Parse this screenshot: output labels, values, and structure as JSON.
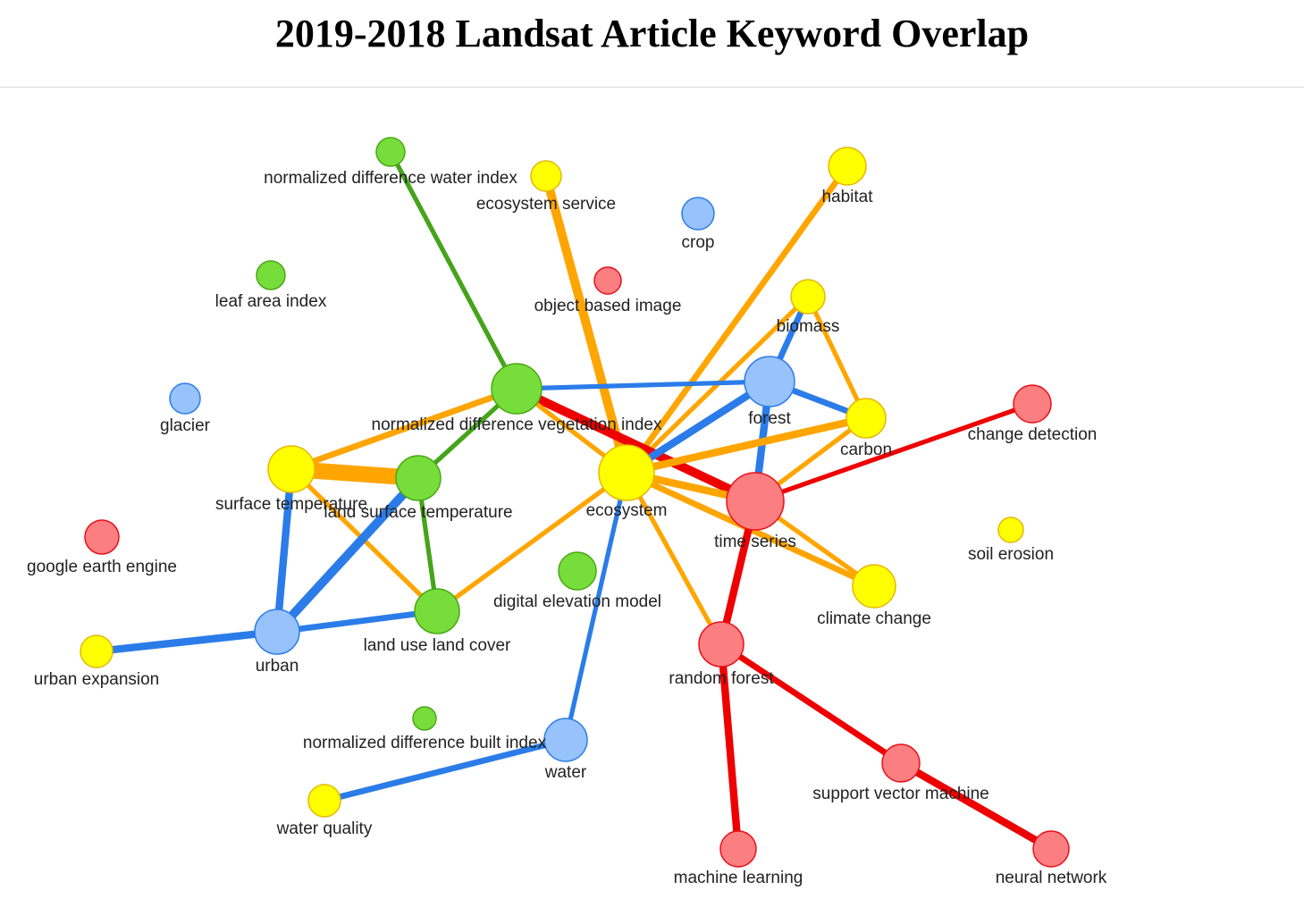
{
  "title": "2019-2018 Landsat Article Keyword Overlap",
  "colors": {
    "green": "#77dd3a",
    "green_stroke": "#4aa816",
    "yellow": "#ffff00",
    "yellow_stroke": "#e6b800",
    "blue": "#97c2fc",
    "blue_stroke": "#2b7ce9",
    "red": "#fb7e81",
    "red_stroke": "#e8101a",
    "edge_green": "#45a41b",
    "edge_yellow": "#ffa500",
    "edge_blue": "#2b7ce9",
    "edge_red": "#ee0000"
  },
  "nodes": [
    {
      "id": "ndwi",
      "label": "normalized difference water index",
      "group": "green"
    },
    {
      "id": "ecosvc",
      "label": "ecosystem service",
      "group": "yellow"
    },
    {
      "id": "crop",
      "label": "crop",
      "group": "blue"
    },
    {
      "id": "habitat",
      "label": "habitat",
      "group": "yellow"
    },
    {
      "id": "lai",
      "label": "leaf area index",
      "group": "green"
    },
    {
      "id": "obi",
      "label": "object based image",
      "group": "red"
    },
    {
      "id": "biomass",
      "label": "biomass",
      "group": "yellow"
    },
    {
      "id": "glacier",
      "label": "glacier",
      "group": "blue"
    },
    {
      "id": "ndvi",
      "label": "normalized difference vegetation index",
      "group": "green"
    },
    {
      "id": "forest",
      "label": "forest",
      "group": "blue"
    },
    {
      "id": "carbon",
      "label": "carbon",
      "group": "yellow"
    },
    {
      "id": "changedet",
      "label": "change detection",
      "group": "red"
    },
    {
      "id": "surftemp",
      "label": "surface temperature",
      "group": "yellow"
    },
    {
      "id": "lst",
      "label": "land surface temperature",
      "group": "green"
    },
    {
      "id": "ecosystem",
      "label": "ecosystem",
      "group": "yellow"
    },
    {
      "id": "timeseries",
      "label": "time series",
      "group": "red"
    },
    {
      "id": "soil",
      "label": "soil erosion",
      "group": "yellow"
    },
    {
      "id": "gee",
      "label": "google earth engine",
      "group": "red"
    },
    {
      "id": "dem",
      "label": "digital elevation model",
      "group": "green"
    },
    {
      "id": "climate",
      "label": "climate change",
      "group": "yellow"
    },
    {
      "id": "lulc",
      "label": "land use land cover",
      "group": "green"
    },
    {
      "id": "urban",
      "label": "urban",
      "group": "blue"
    },
    {
      "id": "urbanexp",
      "label": "urban expansion",
      "group": "yellow"
    },
    {
      "id": "rf",
      "label": "random forest",
      "group": "red"
    },
    {
      "id": "ndbi",
      "label": "normalized difference built index",
      "group": "green"
    },
    {
      "id": "water",
      "label": "water",
      "group": "blue"
    },
    {
      "id": "svm",
      "label": "support vector machine",
      "group": "red"
    },
    {
      "id": "wq",
      "label": "water quality",
      "group": "yellow"
    },
    {
      "id": "ml",
      "label": "machine learning",
      "group": "red"
    },
    {
      "id": "nn",
      "label": "neural network",
      "group": "red"
    }
  ],
  "edges": [
    {
      "from": "ndwi",
      "to": "ndvi",
      "group": "green",
      "weight": 2
    },
    {
      "from": "ecosvc",
      "to": "ecosystem",
      "group": "yellow",
      "weight": 5
    },
    {
      "from": "habitat",
      "to": "ecosystem",
      "group": "yellow",
      "weight": 3
    },
    {
      "from": "biomass",
      "to": "forest",
      "group": "blue",
      "weight": 3
    },
    {
      "from": "biomass",
      "to": "carbon",
      "group": "yellow",
      "weight": 2
    },
    {
      "from": "biomass",
      "to": "ecosystem",
      "group": "yellow",
      "weight": 2
    },
    {
      "from": "ndvi",
      "to": "forest",
      "group": "blue",
      "weight": 2
    },
    {
      "from": "ndvi",
      "to": "timeseries",
      "group": "red",
      "weight": 5
    },
    {
      "from": "ndvi",
      "to": "surftemp",
      "group": "yellow",
      "weight": 3
    },
    {
      "from": "ndvi",
      "to": "lst",
      "group": "green",
      "weight": 2
    },
    {
      "from": "ndvi",
      "to": "ecosystem",
      "group": "yellow",
      "weight": 2
    },
    {
      "from": "forest",
      "to": "carbon",
      "group": "blue",
      "weight": 3
    },
    {
      "from": "forest",
      "to": "ecosystem",
      "group": "blue",
      "weight": 4
    },
    {
      "from": "forest",
      "to": "timeseries",
      "group": "blue",
      "weight": 4
    },
    {
      "from": "carbon",
      "to": "ecosystem",
      "group": "yellow",
      "weight": 4
    },
    {
      "from": "carbon",
      "to": "timeseries",
      "group": "yellow",
      "weight": 2
    },
    {
      "from": "changedet",
      "to": "timeseries",
      "group": "red",
      "weight": 2
    },
    {
      "from": "surftemp",
      "to": "lst",
      "group": "yellow",
      "weight": 10
    },
    {
      "from": "surftemp",
      "to": "urban",
      "group": "blue",
      "weight": 4
    },
    {
      "from": "surftemp",
      "to": "lulc",
      "group": "yellow",
      "weight": 2
    },
    {
      "from": "lst",
      "to": "urban",
      "group": "blue",
      "weight": 5
    },
    {
      "from": "lst",
      "to": "lulc",
      "group": "green",
      "weight": 2
    },
    {
      "from": "ecosystem",
      "to": "timeseries",
      "group": "yellow",
      "weight": 4
    },
    {
      "from": "ecosystem",
      "to": "climate",
      "group": "yellow",
      "weight": 3
    },
    {
      "from": "ecosystem",
      "to": "lulc",
      "group": "yellow",
      "weight": 2
    },
    {
      "from": "ecosystem",
      "to": "water",
      "group": "blue",
      "weight": 2
    },
    {
      "from": "ecosystem",
      "to": "rf",
      "group": "yellow",
      "weight": 2
    },
    {
      "from": "timeseries",
      "to": "climate",
      "group": "yellow",
      "weight": 2
    },
    {
      "from": "timeseries",
      "to": "rf",
      "group": "red",
      "weight": 4
    },
    {
      "from": "urban",
      "to": "lulc",
      "group": "blue",
      "weight": 3
    },
    {
      "from": "urban",
      "to": "urbanexp",
      "group": "blue",
      "weight": 4
    },
    {
      "from": "rf",
      "to": "ml",
      "group": "red",
      "weight": 4
    },
    {
      "from": "rf",
      "to": "svm",
      "group": "red",
      "weight": 3
    },
    {
      "from": "svm",
      "to": "nn",
      "group": "red",
      "weight": 4
    },
    {
      "from": "water",
      "to": "wq",
      "group": "blue",
      "weight": 3
    }
  ]
}
